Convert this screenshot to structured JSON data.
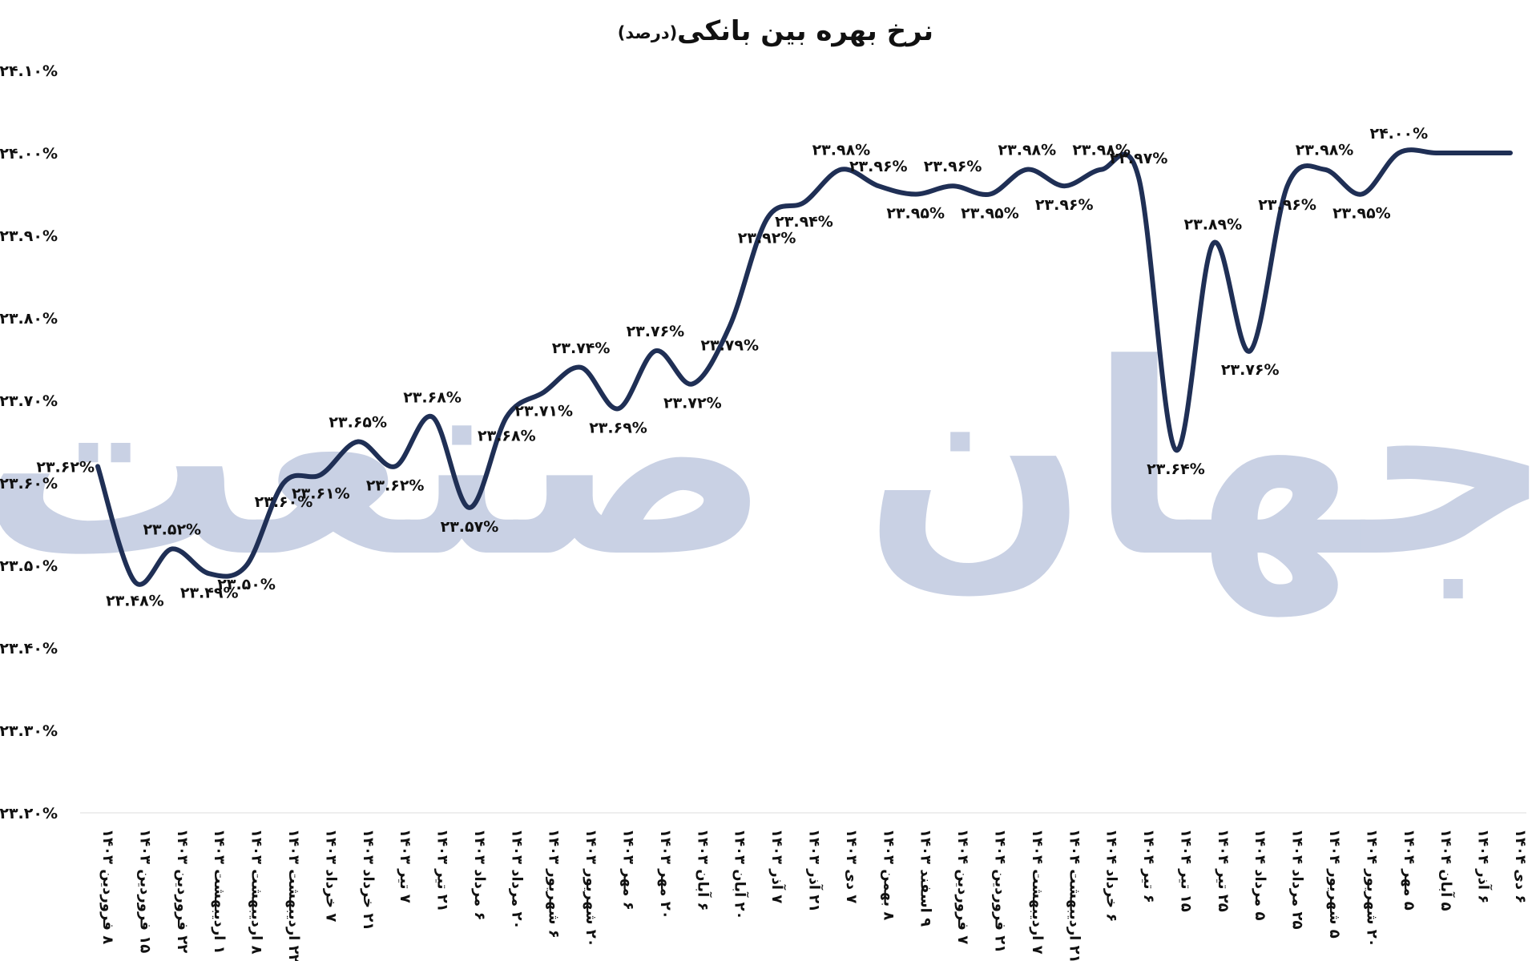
{
  "chart_data": {
    "type": "line",
    "title": "نرخ بهره بین بانکی",
    "subtitle": "(درصد)",
    "watermark": "جهان صنعت",
    "line_color": "#1f2f55",
    "ylim": [
      23.2,
      24.1
    ],
    "y_ticks": [
      "۲۳.۲۰%",
      "۲۳.۳۰%",
      "۲۳.۴۰%",
      "۲۳.۵۰%",
      "۲۳.۶۰%",
      "۲۳.۷۰%",
      "۲۳.۸۰%",
      "۲۳.۹۰%",
      "۲۴.۰۰%",
      "۲۴.۱۰%"
    ],
    "categories": [
      "۸ فروردین ۱۴۰۳",
      "۱۵ فروردین ۱۴۰۳",
      "۲۲ فروردین ۱۴۰۳",
      "۱ اردیبهشت ۱۴۰۳",
      "۸ اردیبهشت ۱۴۰۳",
      "۲۲ اردیبهشت ۱۴۰۳",
      "۷ خرداد ۱۴۰۳",
      "۲۱ خرداد ۱۴۰۳",
      "۷ تیر ۱۴۰۳",
      "۲۱ تیر ۱۴۰۳",
      "۶ مرداد ۱۴۰۳",
      "۲۰ مرداد ۱۴۰۳",
      "۶ شهریور ۱۴۰۳",
      "۲۰ شهریور ۱۴۰۳",
      "۶ مهر ۱۴۰۳",
      "۲۰ مهر ۱۴۰۳",
      "۶ آبان ۱۴۰۳",
      "۲۰ آبان ۱۴۰۳",
      "۷ آذر ۱۴۰۳",
      "۲۱ آذر ۱۴۰۳",
      "۷ دی ۱۴۰۳",
      "۸ بهمن ۱۴۰۳",
      "۹ اسفند ۱۴۰۳",
      "۷ فروردین ۱۴۰۴",
      "۲۱ فروردین ۱۴۰۴",
      "۷ اردیبهشت ۱۴۰۴",
      "۲۱ اردیبهشت ۱۴۰۴",
      "۶ خرداد ۱۴۰۴",
      "۶ تیر ۱۴۰۴",
      "۱۵ تیر ۱۴۰۴",
      "۲۵ تیر ۱۴۰۴",
      "۵ مرداد ۱۴۰۴",
      "۲۵ مرداد ۱۴۰۴",
      "۵ شهریور ۱۴۰۴",
      "۲۰ شهریور ۱۴۰۴",
      "۵ مهر ۱۴۰۴",
      "۵ آبان ۱۴۰۴",
      "۶ آذر ۱۴۰۴",
      "۶ دی ۱۴۰۴"
    ],
    "values": [
      23.62,
      23.48,
      23.52,
      23.49,
      23.5,
      23.6,
      23.61,
      23.65,
      23.62,
      23.68,
      23.57,
      23.68,
      23.71,
      23.74,
      23.69,
      23.76,
      23.72,
      23.79,
      23.92,
      23.94,
      23.98,
      23.96,
      23.95,
      23.96,
      23.95,
      23.98,
      23.96,
      23.98,
      23.97,
      23.64,
      23.89,
      23.76,
      23.96,
      23.98,
      23.95,
      24.0,
      24.0,
      24.0,
      24.0
    ],
    "data_labels": [
      "۲۳.۶۲%",
      "۲۳.۴۸%",
      "۲۳.۵۲%",
      "۲۳.۴۹%",
      "۲۳.۵۰%",
      "۲۳.۶۰%",
      "۲۳.۶۱%",
      "۲۳.۶۵%",
      "۲۳.۶۲%",
      "۲۳.۶۸%",
      "۲۳.۵۷%",
      "۲۳.۶۸%",
      "۲۳.۷۱%",
      "۲۳.۷۴%",
      "۲۳.۶۹%",
      "۲۳.۷۶%",
      "۲۳.۷۲%",
      "۲۳.۷۹%",
      "۲۳.۹۲%",
      "۲۳.۹۴%",
      "۲۳.۹۸%",
      "۲۳.۹۶%",
      "۲۳.۹۵%",
      "۲۳.۹۶%",
      "۲۳.۹۵%",
      "۲۳.۹۸%",
      "۲۳.۹۶%",
      "۲۳.۹۸%",
      "۲۳.۹۷%",
      "۲۳.۶۴%",
      "۲۳.۸۹%",
      "۲۳.۷۶%",
      "۲۳.۹۶%",
      "۲۳.۹۸%",
      "۲۳.۹۵%",
      "۲۴.۰۰%",
      "",
      "",
      ""
    ],
    "grid": false,
    "legend": "none"
  }
}
